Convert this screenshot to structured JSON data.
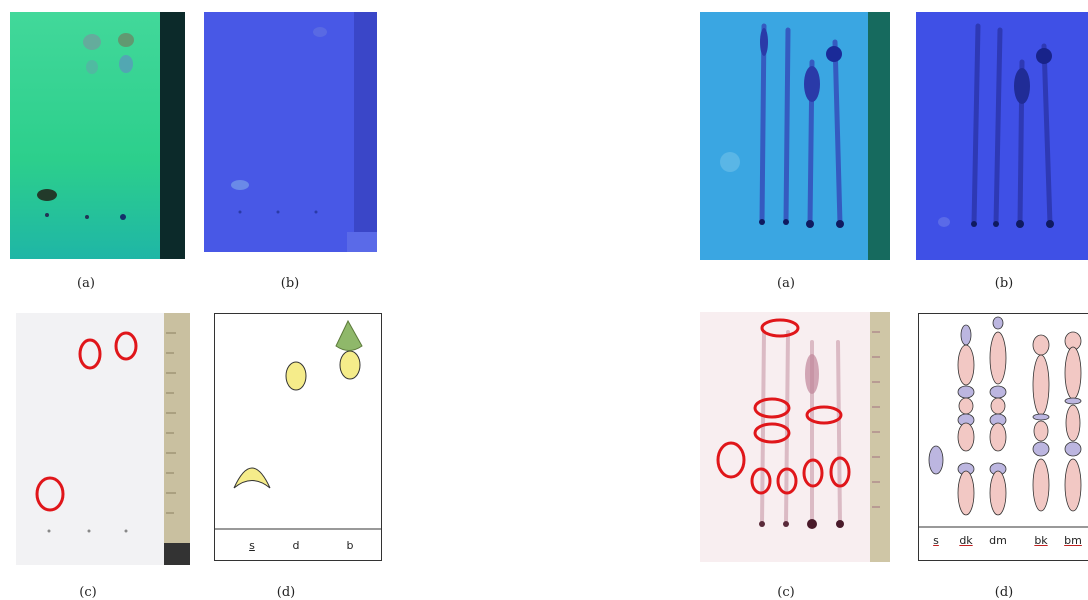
{
  "left_set": {
    "captions": [
      "(a)",
      "(b)",
      "(c)",
      "(d)"
    ],
    "diagram_lanes": [
      "s",
      "d",
      "b"
    ]
  },
  "right_set": {
    "captions": [
      "(a)",
      "(b)",
      "(c)",
      "(d)"
    ],
    "diagram_lanes": [
      "s",
      "dk",
      "dm",
      "bk",
      "bm"
    ]
  },
  "colors": {
    "plate_green": "#2fd08a",
    "plate_blue_dark": "#4a5ae8",
    "plate_cyan": "#38a8e0",
    "plate_blue_violet": "#3f4ee6",
    "plate_white": "#f4f4f6",
    "plate_pink": "#f8eef0",
    "ruler": "#c8c0a0",
    "marker_red": "#e0161a",
    "spot_yellow": "#f5ec8a",
    "spot_pink": "#f2c8c4",
    "spot_violet": "#bcb6e0"
  }
}
